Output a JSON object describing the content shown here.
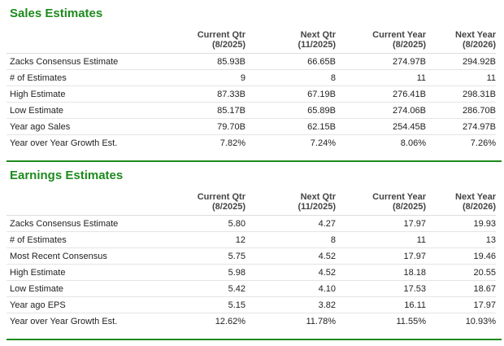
{
  "sections": [
    {
      "title": "Sales Estimates",
      "columns": [
        {
          "name": "Current Qtr",
          "period": "(8/2025)"
        },
        {
          "name": "Next Qtr",
          "period": "(11/2025)"
        },
        {
          "name": "Current Year",
          "period": "(8/2025)"
        },
        {
          "name": "Next Year",
          "period": "(8/2026)"
        }
      ],
      "rows": [
        {
          "label": "Zacks Consensus Estimate",
          "cells": [
            "85.93B",
            "66.65B",
            "274.97B",
            "294.92B"
          ]
        },
        {
          "label": "# of Estimates",
          "cells": [
            "9",
            "8",
            "11",
            "11"
          ]
        },
        {
          "label": "High Estimate",
          "cells": [
            "87.33B",
            "67.19B",
            "276.41B",
            "298.31B"
          ]
        },
        {
          "label": "Low Estimate",
          "cells": [
            "85.17B",
            "65.89B",
            "274.06B",
            "286.70B"
          ]
        },
        {
          "label": "Year ago Sales",
          "cells": [
            "79.70B",
            "62.15B",
            "254.45B",
            "274.97B"
          ]
        },
        {
          "label": "Year over Year Growth Est.",
          "cells": [
            "7.82%",
            "7.24%",
            "8.06%",
            "7.26%"
          ]
        }
      ]
    },
    {
      "title": "Earnings Estimates",
      "columns": [
        {
          "name": "Current Qtr",
          "period": "(8/2025)"
        },
        {
          "name": "Next Qtr",
          "period": "(11/2025)"
        },
        {
          "name": "Current Year",
          "period": "(8/2025)"
        },
        {
          "name": "Next Year",
          "period": "(8/2026)"
        }
      ],
      "rows": [
        {
          "label": "Zacks Consensus Estimate",
          "cells": [
            "5.80",
            "4.27",
            "17.97",
            "19.93"
          ]
        },
        {
          "label": "# of Estimates",
          "cells": [
            "12",
            "8",
            "11",
            "13"
          ]
        },
        {
          "label": "Most Recent Consensus",
          "cells": [
            "5.75",
            "4.52",
            "17.97",
            "19.46"
          ]
        },
        {
          "label": "High Estimate",
          "cells": [
            "5.98",
            "4.52",
            "18.18",
            "20.55"
          ]
        },
        {
          "label": "Low Estimate",
          "cells": [
            "5.42",
            "4.10",
            "17.53",
            "18.67"
          ]
        },
        {
          "label": "Year ago EPS",
          "cells": [
            "5.15",
            "3.82",
            "16.11",
            "17.97"
          ]
        },
        {
          "label": "Year over Year Growth Est.",
          "cells": [
            "12.62%",
            "11.78%",
            "11.55%",
            "10.93%"
          ]
        }
      ]
    }
  ]
}
